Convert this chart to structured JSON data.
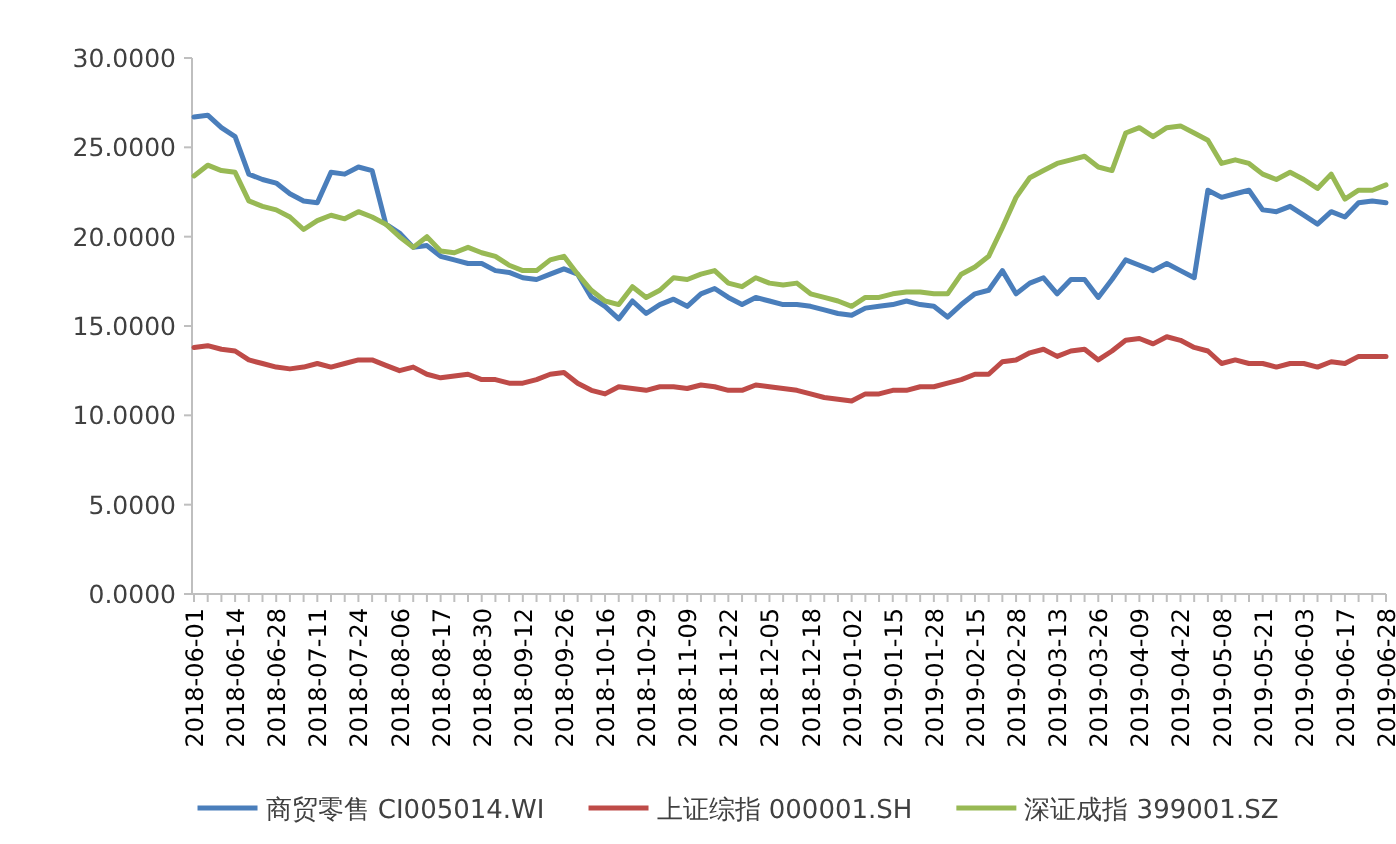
{
  "chart_data": {
    "type": "line",
    "categories": [
      "2018-06-01",
      null,
      null,
      "2018-06-14",
      null,
      null,
      "2018-06-28",
      null,
      null,
      "2018-07-11",
      null,
      null,
      "2018-07-24",
      null,
      null,
      "2018-08-06",
      null,
      null,
      "2018-08-17",
      null,
      null,
      "2018-08-30",
      null,
      null,
      "2018-09-12",
      null,
      null,
      "2018-09-26",
      null,
      null,
      "2018-10-16",
      null,
      null,
      "2018-10-29",
      null,
      null,
      "2018-11-09",
      null,
      null,
      "2018-11-22",
      null,
      null,
      "2018-12-05",
      null,
      null,
      "2018-12-18",
      null,
      null,
      "2019-01-02",
      null,
      null,
      "2019-01-15",
      null,
      null,
      "2019-01-28",
      null,
      null,
      "2019-02-15",
      null,
      null,
      "2019-02-28",
      null,
      null,
      "2019-03-13",
      null,
      null,
      "2019-03-26",
      null,
      null,
      "2019-04-09",
      null,
      null,
      "2019-04-22",
      null,
      null,
      "2019-05-08",
      null,
      null,
      "2019-05-21",
      null,
      null,
      "2019-06-03",
      null,
      null,
      "2019-06-17",
      null,
      null,
      "2019-06-28"
    ],
    "series": [
      {
        "name": "商贸零售 CI005014.WI",
        "color": "#4a7ebb",
        "values": [
          26.7,
          26.8,
          26.1,
          25.6,
          23.5,
          23.2,
          23.0,
          22.4,
          22.0,
          21.9,
          23.6,
          23.5,
          23.9,
          23.7,
          20.7,
          20.2,
          19.4,
          19.5,
          18.9,
          18.7,
          18.5,
          18.5,
          18.1,
          18.0,
          17.7,
          17.6,
          17.9,
          18.2,
          17.9,
          16.6,
          16.1,
          15.4,
          16.4,
          15.7,
          16.2,
          16.5,
          16.1,
          16.8,
          17.1,
          16.6,
          16.2,
          16.6,
          16.4,
          16.2,
          16.2,
          16.1,
          15.9,
          15.7,
          15.6,
          16.0,
          16.1,
          16.2,
          16.4,
          16.2,
          16.1,
          15.5,
          16.2,
          16.8,
          17.0,
          18.1,
          16.8,
          17.4,
          17.7,
          16.8,
          17.6,
          17.6,
          16.6,
          17.6,
          18.7,
          18.4,
          18.1,
          18.5,
          18.1,
          17.7,
          22.6,
          22.2,
          22.4,
          22.6,
          21.5,
          21.4,
          21.7,
          21.2,
          20.7,
          21.4,
          21.1,
          21.9,
          22.0,
          21.9
        ]
      },
      {
        "name": "上证综指 000001.SH",
        "color": "#be4b48",
        "values": [
          13.8,
          13.9,
          13.7,
          13.6,
          13.1,
          12.9,
          12.7,
          12.6,
          12.7,
          12.9,
          12.7,
          12.9,
          13.1,
          13.1,
          12.8,
          12.5,
          12.7,
          12.3,
          12.1,
          12.2,
          12.3,
          12.0,
          12.0,
          11.8,
          11.8,
          12.0,
          12.3,
          12.4,
          11.8,
          11.4,
          11.2,
          11.6,
          11.5,
          11.4,
          11.6,
          11.6,
          11.5,
          11.7,
          11.6,
          11.4,
          11.4,
          11.7,
          11.6,
          11.5,
          11.4,
          11.2,
          11.0,
          10.9,
          10.8,
          11.2,
          11.2,
          11.4,
          11.4,
          11.6,
          11.6,
          11.8,
          12.0,
          12.3,
          12.3,
          13.0,
          13.1,
          13.5,
          13.7,
          13.3,
          13.6,
          13.7,
          13.1,
          13.6,
          14.2,
          14.3,
          14.0,
          14.4,
          14.2,
          13.8,
          13.6,
          12.9,
          13.1,
          12.9,
          12.9,
          12.7,
          12.9,
          12.9,
          12.7,
          13.0,
          12.9,
          13.3,
          13.3,
          13.3
        ]
      },
      {
        "name": "深证成指 399001.SZ",
        "color": "#98b954",
        "values": [
          23.4,
          24.0,
          23.7,
          23.6,
          22.0,
          21.7,
          21.5,
          21.1,
          20.4,
          20.9,
          21.2,
          21.0,
          21.4,
          21.1,
          20.7,
          20.0,
          19.4,
          20.0,
          19.2,
          19.1,
          19.4,
          19.1,
          18.9,
          18.4,
          18.1,
          18.1,
          18.7,
          18.9,
          17.9,
          17.0,
          16.4,
          16.2,
          17.2,
          16.6,
          17.0,
          17.7,
          17.6,
          17.9,
          18.1,
          17.4,
          17.2,
          17.7,
          17.4,
          17.3,
          17.4,
          16.8,
          16.6,
          16.4,
          16.1,
          16.6,
          16.6,
          16.8,
          16.9,
          16.9,
          16.8,
          16.8,
          17.9,
          18.3,
          18.9,
          20.5,
          22.2,
          23.3,
          23.7,
          24.1,
          24.3,
          24.5,
          23.9,
          23.7,
          25.8,
          26.1,
          25.6,
          26.1,
          26.2,
          25.8,
          25.4,
          24.1,
          24.3,
          24.1,
          23.5,
          23.2,
          23.6,
          23.2,
          22.7,
          23.5,
          22.1,
          22.6,
          22.6,
          22.9
        ]
      }
    ],
    "ylim": [
      0,
      30
    ],
    "yticks": [
      {
        "value": 0,
        "label": "0.0000"
      },
      {
        "value": 5,
        "label": "5.0000"
      },
      {
        "value": 10,
        "label": "10.0000"
      },
      {
        "value": 15,
        "label": "15.0000"
      },
      {
        "value": 20,
        "label": "20.0000"
      },
      {
        "value": 25,
        "label": "25.0000"
      },
      {
        "value": 30,
        "label": "30.0000"
      }
    ],
    "legend": "bottom"
  }
}
